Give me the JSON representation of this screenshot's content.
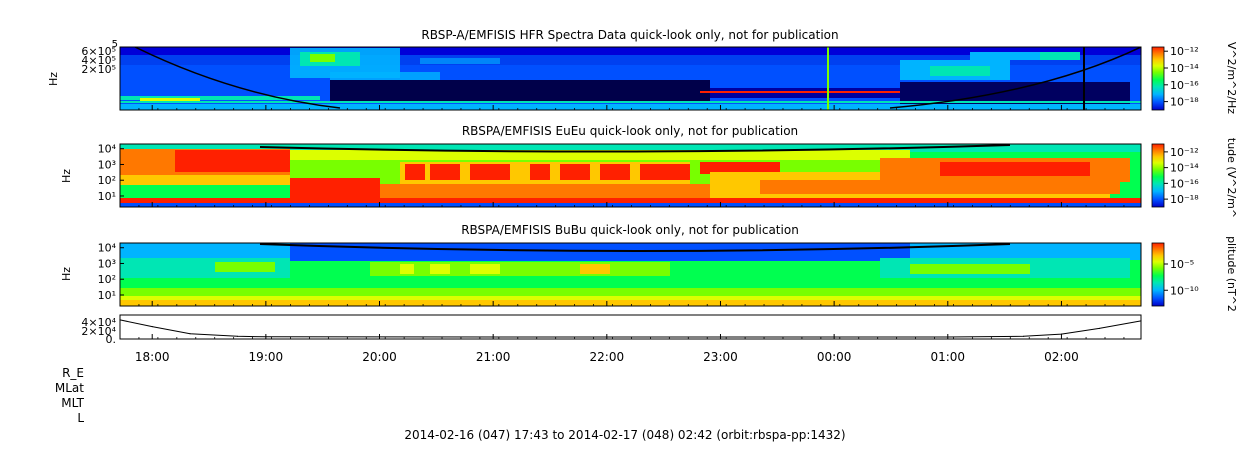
{
  "footer": "2014-02-16 (047) 17:43 to 2014-02-17 (048) 02:42 (orbit:rbspa-pp:1432)",
  "ephemeris_labels": [
    "R_E",
    "MLat",
    "MLT",
    "L"
  ],
  "chart_data": [
    {
      "type": "heatmap",
      "title": "RBSP-A/EMFISIS  HFR Spectra Data quick-look only, not for publication",
      "ylabel": "Hz",
      "ytick_labels": [
        "6×10⁵",
        "4×10⁵",
        "2×10⁵"
      ],
      "ytick_values": [
        600000,
        400000,
        200000
      ],
      "ytick_top_label": "5",
      "colorbar_label": "V^2/m^2/Hz",
      "colorbar_ticks": [
        "10⁻¹²",
        "10⁻¹⁴",
        "10⁻¹⁶",
        "10⁻¹⁸"
      ],
      "colorbar_tick_exponents": [
        -12,
        -14,
        -16,
        -18
      ],
      "colorbar_range_exponents": [
        -19,
        -11.5
      ]
    },
    {
      "type": "heatmap",
      "title": "RBSPA/EMFISIS  EuEu quick-look only, not for publication",
      "ylabel": "Hz",
      "ytick_labels": [
        "10⁴",
        "10³",
        "10²",
        "10¹"
      ],
      "ytick_exponents": [
        4,
        3,
        2,
        1
      ],
      "colorbar_label": "tude (V^2/m^",
      "colorbar_ticks": [
        "10⁻¹²",
        "10⁻¹⁴",
        "10⁻¹⁶",
        "10⁻¹⁸"
      ],
      "colorbar_tick_exponents": [
        -12,
        -14,
        -16,
        -18
      ],
      "colorbar_range_exponents": [
        -19,
        -11
      ]
    },
    {
      "type": "heatmap",
      "title": "RBSPA/EMFISIS  BuBu quick-look only, not for publication",
      "ylabel": "Hz",
      "ytick_labels": [
        "10⁴",
        "10³",
        "10²",
        "10¹"
      ],
      "ytick_exponents": [
        4,
        3,
        2,
        1
      ],
      "colorbar_label": "plitude (nT^2",
      "colorbar_ticks": [
        "10⁻⁵",
        "10⁻¹⁰"
      ],
      "colorbar_tick_exponents": [
        -5,
        -10
      ],
      "colorbar_range_exponents": [
        -13,
        -1
      ]
    },
    {
      "type": "line",
      "ytick_labels": [
        "4×10⁴",
        "2×10⁴",
        "0."
      ],
      "ytick_values": [
        40000,
        20000,
        0
      ],
      "ylim": [
        0,
        40000
      ],
      "x": [
        "17:43",
        "18:00",
        "18:20",
        "18:45",
        "19:00",
        "22:00",
        "01:00",
        "01:40",
        "02:00",
        "02:20",
        "02:42"
      ],
      "y": [
        36000,
        22000,
        7000,
        1500,
        500,
        0,
        0,
        1500,
        6000,
        18000,
        34000
      ]
    }
  ],
  "time_axis": {
    "start": "17:43",
    "end": "02:42",
    "tick_labels": [
      "18:00",
      "19:00",
      "20:00",
      "21:00",
      "22:00",
      "23:00",
      "00:00",
      "01:00",
      "02:00"
    ]
  },
  "colormap": [
    "#0000c8",
    "#0050ff",
    "#00b4ff",
    "#00e6b4",
    "#00ff50",
    "#78ff00",
    "#dcff00",
    "#ffc800",
    "#ff7800",
    "#ff2000"
  ]
}
